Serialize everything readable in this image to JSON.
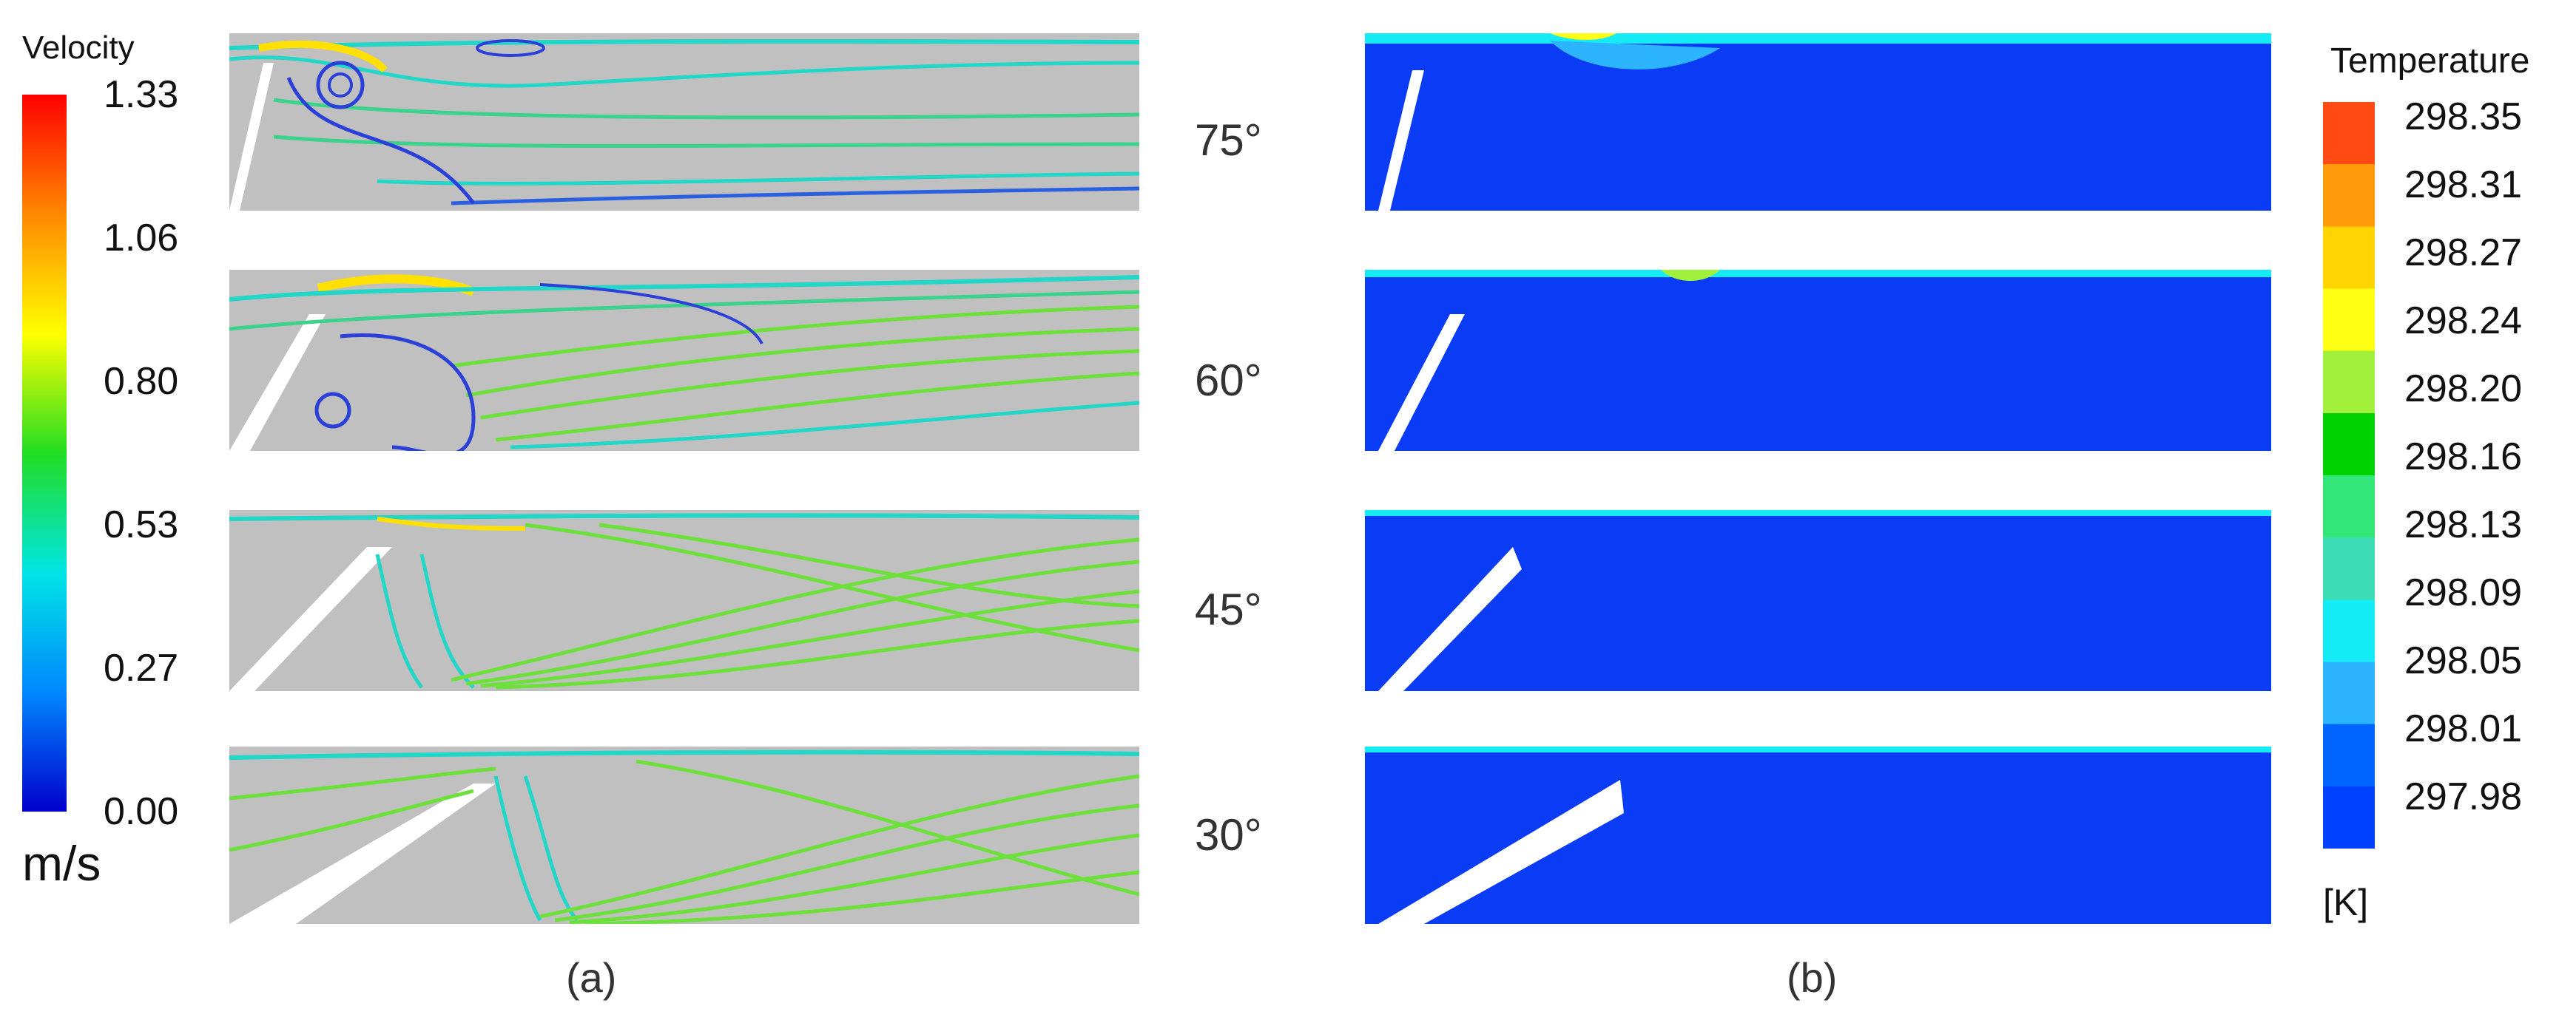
{
  "velocity_legend": {
    "title": "Velocity",
    "unit": "m/s",
    "ticks": [
      "1.33",
      "1.06",
      "0.80",
      "0.53",
      "0.27",
      "0.00"
    ],
    "colors": [
      "#ff0000",
      "#ff8800",
      "#ffff00",
      "#22dd22",
      "#00e5e5",
      "#0088ff",
      "#0000cc"
    ]
  },
  "temperature_legend": {
    "title": "Temperature",
    "unit": "[K]",
    "ticks": [
      "298.35",
      "298.31",
      "298.27",
      "298.24",
      "298.20",
      "298.16",
      "298.13",
      "298.09",
      "298.05",
      "298.01",
      "297.98"
    ],
    "colors": [
      "#ff4a14",
      "#ff9b0a",
      "#ffd400",
      "#ffff14",
      "#a0f03c",
      "#00d200",
      "#32e678",
      "#3cdcb4",
      "#14ebf5",
      "#2db4ff",
      "#0064ff",
      "#0040ff"
    ]
  },
  "angles": [
    "75°",
    "60°",
    "45°",
    "30°"
  ],
  "angle_values": [
    75,
    60,
    45,
    30
  ],
  "captions": {
    "a": "(a)",
    "b": "(b)"
  },
  "colors": {
    "panel_gray": "#c0c0c0",
    "temp_blue": "#0a3cf5",
    "streamline_green": "#6ee03c",
    "streamline_cyan": "#22d6c8",
    "streamline_blue": "#2a40d8"
  }
}
